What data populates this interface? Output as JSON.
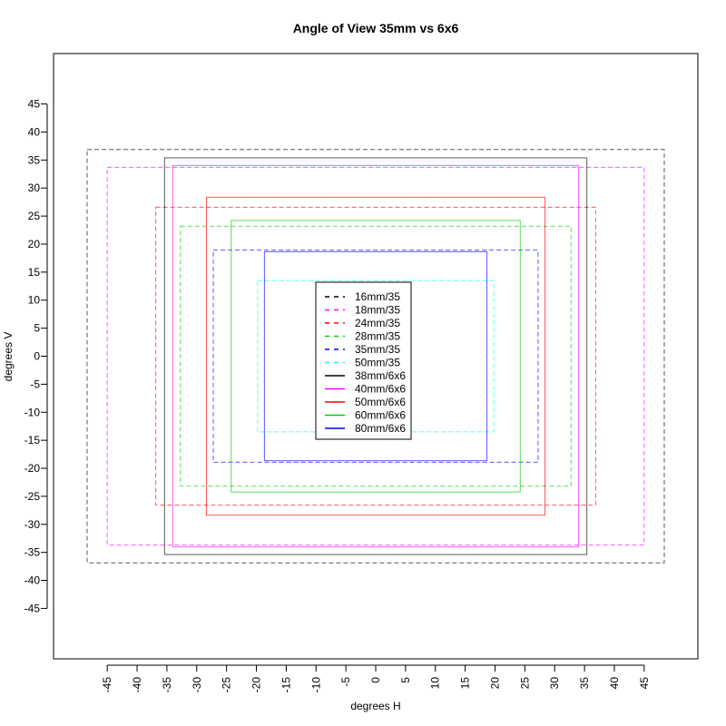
{
  "chart_data": {
    "type": "rectangles",
    "title": "Angle of View 35mm vs 6x6",
    "xlabel": "degrees H",
    "ylabel": "degrees V",
    "xlim": [
      -54,
      54
    ],
    "ylim": [
      -54,
      54
    ],
    "xticks": [
      -45,
      -40,
      -35,
      -30,
      -25,
      -20,
      -15,
      -10,
      -5,
      0,
      5,
      10,
      15,
      20,
      25,
      30,
      35,
      40,
      45
    ],
    "yticks": [
      45,
      40,
      35,
      30,
      25,
      20,
      15,
      10,
      5,
      0,
      -5,
      -10,
      -15,
      -20,
      -25,
      -30,
      -35,
      -40,
      -45
    ],
    "grid": false,
    "legend_position": "center",
    "series": [
      {
        "name": "16mm/35",
        "color": "#000000",
        "dashed": true,
        "half_h": 48.37,
        "half_v": 36.87
      },
      {
        "name": "18mm/35",
        "color": "#ff00ff",
        "dashed": true,
        "half_h": 45.0,
        "half_v": 33.69
      },
      {
        "name": "24mm/35",
        "color": "#ff0000",
        "dashed": true,
        "half_h": 36.87,
        "half_v": 26.57
      },
      {
        "name": "28mm/35",
        "color": "#00cd00",
        "dashed": true,
        "half_h": 32.74,
        "half_v": 23.2
      },
      {
        "name": "35mm/35",
        "color": "#0000ff",
        "dashed": true,
        "half_h": 27.22,
        "half_v": 18.92
      },
      {
        "name": "50mm/35",
        "color": "#00ffff",
        "dashed": true,
        "half_h": 19.8,
        "half_v": 13.5
      },
      {
        "name": "38mm/6x6",
        "color": "#000000",
        "dashed": false,
        "half_h": 35.39,
        "half_v": 35.39
      },
      {
        "name": "40mm/6x6",
        "color": "#ff00ff",
        "dashed": false,
        "half_h": 34.02,
        "half_v": 34.02
      },
      {
        "name": "50mm/6x6",
        "color": "#ff0000",
        "dashed": false,
        "half_h": 28.37,
        "half_v": 28.37
      },
      {
        "name": "60mm/6x6",
        "color": "#00cd00",
        "dashed": false,
        "half_h": 24.23,
        "half_v": 24.23
      },
      {
        "name": "80mm/6x6",
        "color": "#0000ff",
        "dashed": false,
        "half_h": 18.65,
        "half_v": 18.65
      }
    ]
  }
}
